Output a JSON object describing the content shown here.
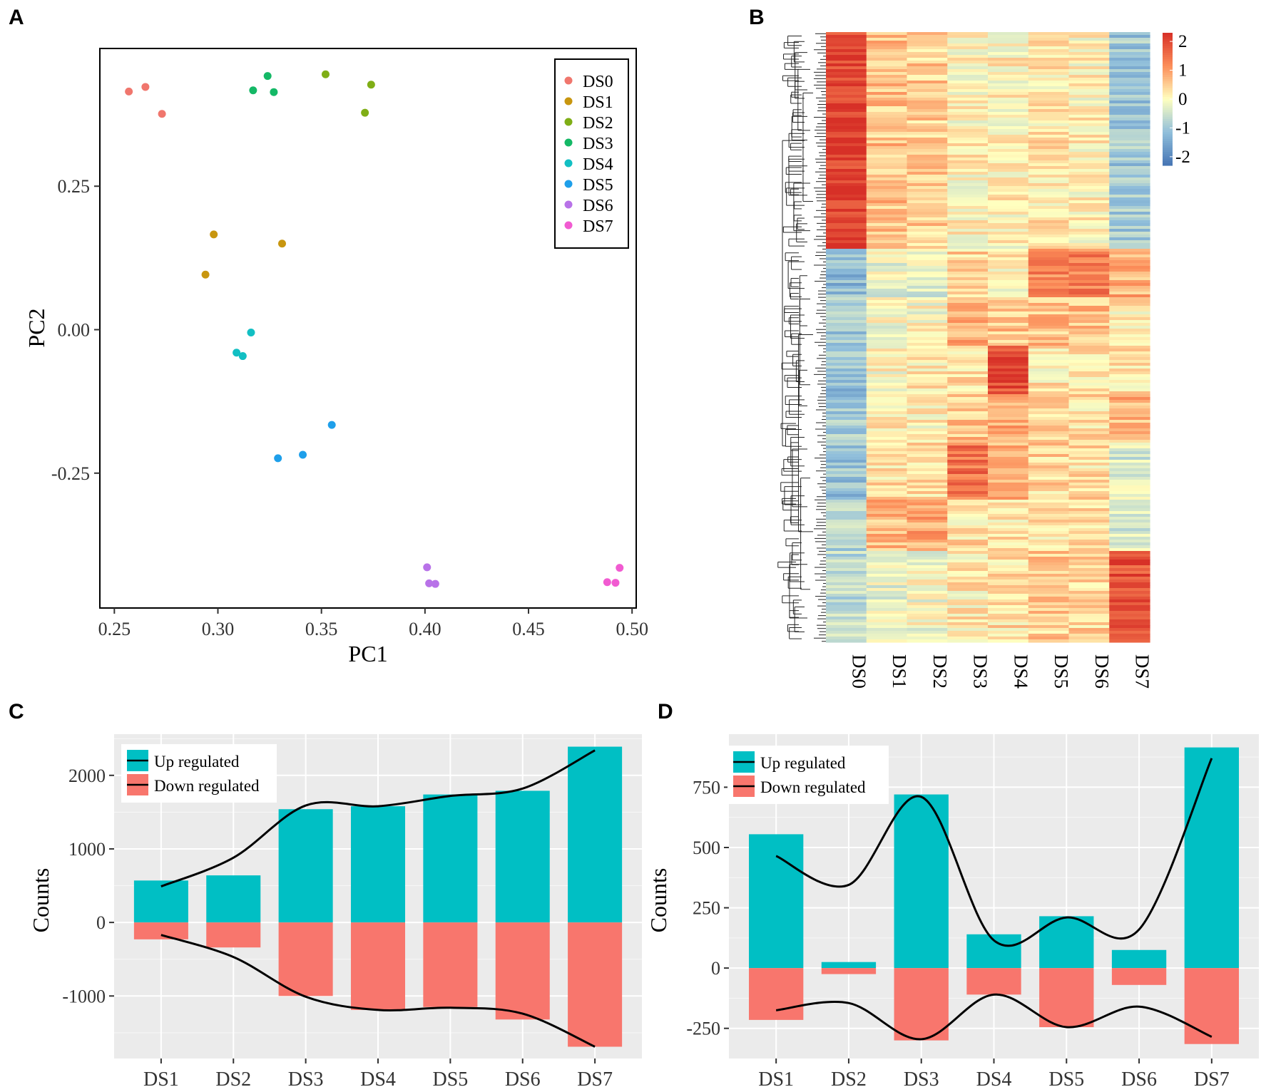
{
  "panels": {
    "a": {
      "letter": "A"
    },
    "b": {
      "letter": "B"
    },
    "c": {
      "letter": "C"
    },
    "d": {
      "letter": "D"
    }
  },
  "colors": {
    "DS0": "#F0766D",
    "DS1": "#C8960F",
    "DS2": "#7FAE16",
    "DS3": "#14B866",
    "DS4": "#12BFC3",
    "DS5": "#1E9FEA",
    "DS6": "#B872E8",
    "DS7": "#F15BD1",
    "up": "#00BFC4",
    "down": "#F8766D",
    "panel_bg": "#EBEBEB"
  },
  "chart_data": [
    {
      "id": "pca",
      "type": "scatter",
      "xlabel": "PC1",
      "ylabel": "PC2",
      "xlim": [
        0.243,
        0.502
      ],
      "ylim": [
        -0.485,
        0.49
      ],
      "xticks": [
        0.25,
        0.3,
        0.35,
        0.4,
        0.45,
        0.5
      ],
      "xtick_labels": [
        "0.25",
        "0.30",
        "0.35",
        "0.40",
        "0.45",
        "0.50"
      ],
      "yticks": [
        0.25,
        0.0,
        -0.25
      ],
      "ytick_labels": [
        "0.25",
        "0.00",
        "-0.25"
      ],
      "legend": [
        "DS0",
        "DS1",
        "DS2",
        "DS3",
        "DS4",
        "DS5",
        "DS6",
        "DS7"
      ],
      "series": [
        {
          "name": "DS0",
          "points": [
            [
              0.257,
              0.415
            ],
            [
              0.265,
              0.423
            ],
            [
              0.273,
              0.376
            ]
          ]
        },
        {
          "name": "DS1",
          "points": [
            [
              0.298,
              0.166
            ],
            [
              0.331,
              0.15
            ],
            [
              0.294,
              0.096
            ]
          ]
        },
        {
          "name": "DS2",
          "points": [
            [
              0.352,
              0.445
            ],
            [
              0.374,
              0.427
            ],
            [
              0.371,
              0.378
            ]
          ]
        },
        {
          "name": "DS3",
          "points": [
            [
              0.324,
              0.442
            ],
            [
              0.317,
              0.417
            ],
            [
              0.327,
              0.414
            ]
          ]
        },
        {
          "name": "DS4",
          "points": [
            [
              0.316,
              -0.005
            ],
            [
              0.309,
              -0.04
            ],
            [
              0.312,
              -0.046
            ]
          ]
        },
        {
          "name": "DS5",
          "points": [
            [
              0.355,
              -0.166
            ],
            [
              0.341,
              -0.218
            ],
            [
              0.329,
              -0.224
            ]
          ]
        },
        {
          "name": "DS6",
          "points": [
            [
              0.401,
              -0.414
            ],
            [
              0.402,
              -0.442
            ],
            [
              0.405,
              -0.443
            ]
          ]
        },
        {
          "name": "DS7",
          "points": [
            [
              0.494,
              -0.415
            ],
            [
              0.488,
              -0.44
            ],
            [
              0.492,
              -0.441
            ]
          ]
        }
      ]
    },
    {
      "id": "heatmap",
      "type": "heatmap",
      "columns": [
        "DS0",
        "DS1",
        "DS2",
        "DS3",
        "DS4",
        "DS5",
        "DS6",
        "DS7"
      ],
      "colorbar": {
        "range": [
          -2.3,
          2.3
        ],
        "ticks": [
          "2",
          "1",
          "0",
          "-1",
          "-2"
        ],
        "tick_values": [
          2,
          1,
          0,
          -1,
          -2
        ]
      },
      "clusters": [
        {
          "fraction": 0.355,
          "values": [
            2.1,
            0.6,
            0.5,
            0.1,
            0.1,
            0.2,
            0.1,
            -1.0
          ]
        },
        {
          "fraction": 0.08,
          "values": [
            -1.2,
            -0.2,
            -0.3,
            0.4,
            0.1,
            1.2,
            1.3,
            0.8
          ]
        },
        {
          "fraction": 0.08,
          "values": [
            -1.0,
            -0.1,
            0.0,
            0.8,
            0.6,
            0.6,
            0.6,
            0.2
          ]
        },
        {
          "fraction": 0.08,
          "values": [
            -1.1,
            0.0,
            0.2,
            0.3,
            1.9,
            0.2,
            0.3,
            0.2
          ]
        },
        {
          "fraction": 0.08,
          "values": [
            -1.0,
            0.2,
            0.1,
            0.6,
            0.8,
            0.5,
            0.3,
            0.7
          ]
        },
        {
          "fraction": 0.09,
          "values": [
            -1.1,
            0.3,
            0.4,
            1.5,
            0.7,
            0.4,
            0.3,
            -0.4
          ]
        },
        {
          "fraction": 0.085,
          "values": [
            -0.8,
            0.7,
            0.9,
            0.3,
            0.2,
            0.3,
            0.3,
            -0.4
          ]
        },
        {
          "fraction": 0.15,
          "values": [
            -0.7,
            -0.2,
            -0.1,
            0.2,
            0.3,
            0.5,
            0.4,
            1.9
          ]
        }
      ]
    },
    {
      "id": "deg_counts",
      "type": "bar",
      "ylabel": "Counts",
      "categories": [
        "DS1",
        "DS2",
        "DS3",
        "DS4",
        "DS5",
        "DS6",
        "DS7"
      ],
      "ylim": [
        -1850,
        2560
      ],
      "yticks": [
        2000,
        1000,
        0,
        -1000
      ],
      "ytick_labels": [
        "2000",
        "1000",
        "0",
        "-1000"
      ],
      "series": [
        {
          "name": "Up regulated",
          "values": [
            570,
            640,
            1540,
            1580,
            1740,
            1790,
            2390
          ]
        },
        {
          "name": "Down regulated",
          "values": [
            -230,
            -340,
            -1000,
            -1190,
            -1150,
            -1320,
            -1690
          ]
        }
      ],
      "trend_up": [
        490,
        880,
        1590,
        1580,
        1720,
        1820,
        2340
      ],
      "trend_down": [
        -170,
        -470,
        -1010,
        -1190,
        -1160,
        -1240,
        -1690
      ],
      "legend": [
        "Up regulated",
        "Down regulated"
      ]
    },
    {
      "id": "de_lncrna_counts",
      "type": "bar",
      "ylabel": "Counts",
      "categories": [
        "DS1",
        "DS2",
        "DS3",
        "DS4",
        "DS5",
        "DS6",
        "DS7"
      ],
      "ylim": [
        -375,
        970
      ],
      "yticks": [
        750,
        500,
        250,
        0,
        -250
      ],
      "ytick_labels": [
        "750",
        "500",
        "250",
        "0",
        "-250"
      ],
      "series": [
        {
          "name": "Up regulated",
          "values": [
            555,
            25,
            720,
            140,
            215,
            75,
            915
          ]
        },
        {
          "name": "Down regulated",
          "values": [
            -215,
            -25,
            -300,
            -110,
            -245,
            -70,
            -315
          ]
        }
      ],
      "trend_up": [
        465,
        345,
        710,
        115,
        210,
        160,
        870
      ],
      "trend_down": [
        -175,
        -145,
        -295,
        -110,
        -245,
        -160,
        -285
      ],
      "legend": [
        "Up regulated",
        "Down regulated"
      ]
    }
  ]
}
